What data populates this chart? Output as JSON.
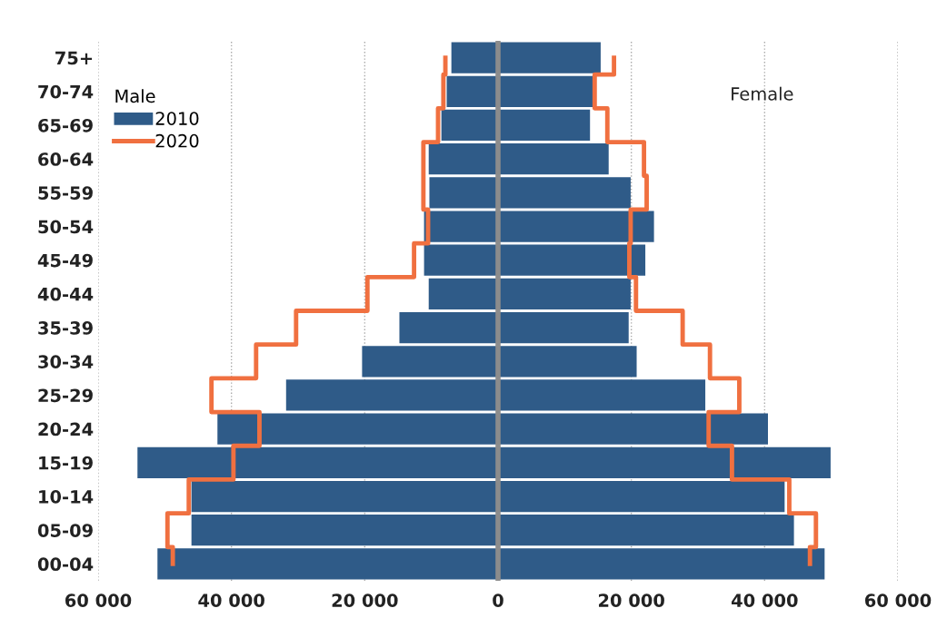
{
  "chart_data": {
    "type": "bar",
    "orientation": "horizontal",
    "stacked": true,
    "categories": [
      "75+",
      "70-74",
      "65-69",
      "60-64",
      "55-59",
      "50-54",
      "45-49",
      "40-44",
      "35-39",
      "30-34",
      "25-29",
      "20-24",
      "15-19",
      "10-14",
      "05-09",
      "00-04"
    ],
    "series": [
      {
        "name": "2010",
        "color": "#2f5b88",
        "values": [
          -7000,
          -7700,
          -8500,
          -10400,
          -10300,
          -11100,
          -11100,
          -10400,
          -14800,
          -20400,
          -31800,
          -42100,
          -54100,
          -46000,
          -46000,
          -51100
        ]
      },
      {
        "color": "#2f5b88",
        "values": [
          15400,
          14400,
          13800,
          16600,
          19900,
          23400,
          22100,
          19900,
          19600,
          20800,
          31100,
          40500,
          49900,
          43000,
          44400,
          49000
        ]
      },
      {
        "name": "2020",
        "type": "step",
        "color": "#f07040",
        "values": [
          -7900,
          -8200,
          -9000,
          -11200,
          -11200,
          -10500,
          -12600,
          -19600,
          -30300,
          -36300,
          -43000,
          -35800,
          -39700,
          -46400,
          -49600,
          -48800
        ]
      },
      {
        "type": "step",
        "color": "#f07040",
        "values": [
          17400,
          14500,
          16400,
          21900,
          22300,
          19900,
          19700,
          20700,
          27700,
          31800,
          36200,
          31600,
          35100,
          43700,
          47700,
          46800
        ]
      }
    ],
    "xlim": [
      -60000,
      60000
    ],
    "xticks": [
      {
        "value": -60000,
        "label": "60 000"
      },
      {
        "value": -40000,
        "label": "40 000"
      },
      {
        "value": -20000,
        "label": "20 000"
      },
      0,
      {
        "value": 20000,
        "label": "20 000"
      },
      {
        "value": 40000,
        "label": "40 000"
      },
      {
        "value": 60000,
        "label": "60 000"
      }
    ],
    "grid": "x",
    "legend": "top left",
    "legend_title": "Male",
    "annotations": [
      "Female"
    ],
    "ref_lines": [
      {
        "axis": "x",
        "value": 0,
        "color": "#8c8c8c"
      }
    ]
  }
}
